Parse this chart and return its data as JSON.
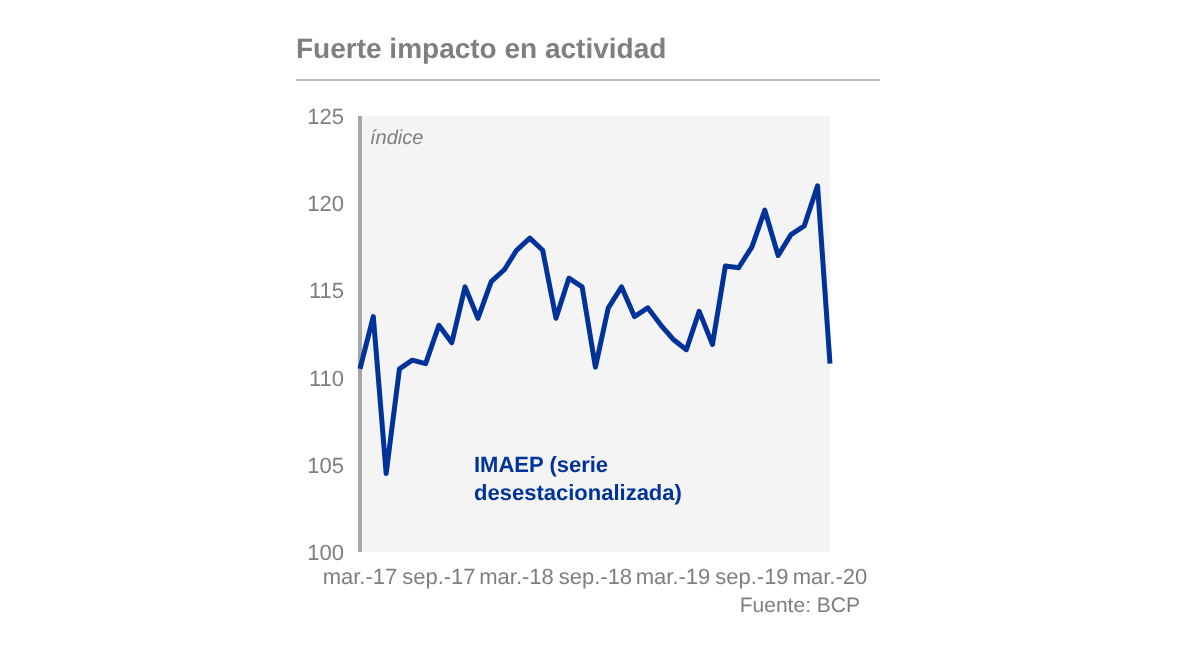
{
  "chart_data": {
    "type": "line",
    "title": "Fuerte impacto en actividad",
    "ylabel": "índice",
    "x": [
      "2017-03",
      "2017-04",
      "2017-05",
      "2017-06",
      "2017-07",
      "2017-08",
      "2017-09",
      "2017-10",
      "2017-11",
      "2017-12",
      "2018-01",
      "2018-02",
      "2018-03",
      "2018-04",
      "2018-05",
      "2018-06",
      "2018-07",
      "2018-08",
      "2018-09",
      "2018-10",
      "2018-11",
      "2018-12",
      "2019-01",
      "2019-02",
      "2019-03",
      "2019-04",
      "2019-05",
      "2019-06",
      "2019-07",
      "2019-08",
      "2019-09",
      "2019-10",
      "2019-11",
      "2019-12",
      "2020-01",
      "2020-02",
      "2020-03"
    ],
    "series": [
      {
        "name": "IMAEP (serie desestacionalizada)",
        "color": "#003399",
        "values": [
          110.5,
          113.5,
          104.5,
          110.5,
          111,
          110.8,
          113,
          112,
          115.2,
          113.4,
          115.5,
          116.2,
          117.3,
          118,
          117.3,
          113.4,
          115.7,
          115.2,
          110.6,
          114,
          115.2,
          113.5,
          114,
          113,
          112.2,
          111.6,
          113.8,
          111.9,
          116.4,
          116.3,
          117.5,
          119.6,
          117,
          118.2,
          118.7,
          121,
          110.8
        ]
      }
    ],
    "xlim": [
      "2017-03",
      "2020-03"
    ],
    "xticks": [
      {
        "value": "2017-03",
        "label": "mar.-17"
      },
      {
        "value": "2017-09",
        "label": "sep.-17"
      },
      {
        "value": "2018-03",
        "label": "mar.-18"
      },
      {
        "value": "2018-09",
        "label": "sep.-18"
      },
      {
        "value": "2019-03",
        "label": "mar.-19"
      },
      {
        "value": "2019-09",
        "label": "sep.-19"
      },
      {
        "value": "2020-03",
        "label": "mar.-20"
      }
    ],
    "ylim": [
      100,
      125
    ],
    "yticks": [
      100,
      105,
      110,
      115,
      120,
      125
    ],
    "annotations": [
      "Fuente: BCP"
    ],
    "line_style": "solid",
    "grid": false
  }
}
